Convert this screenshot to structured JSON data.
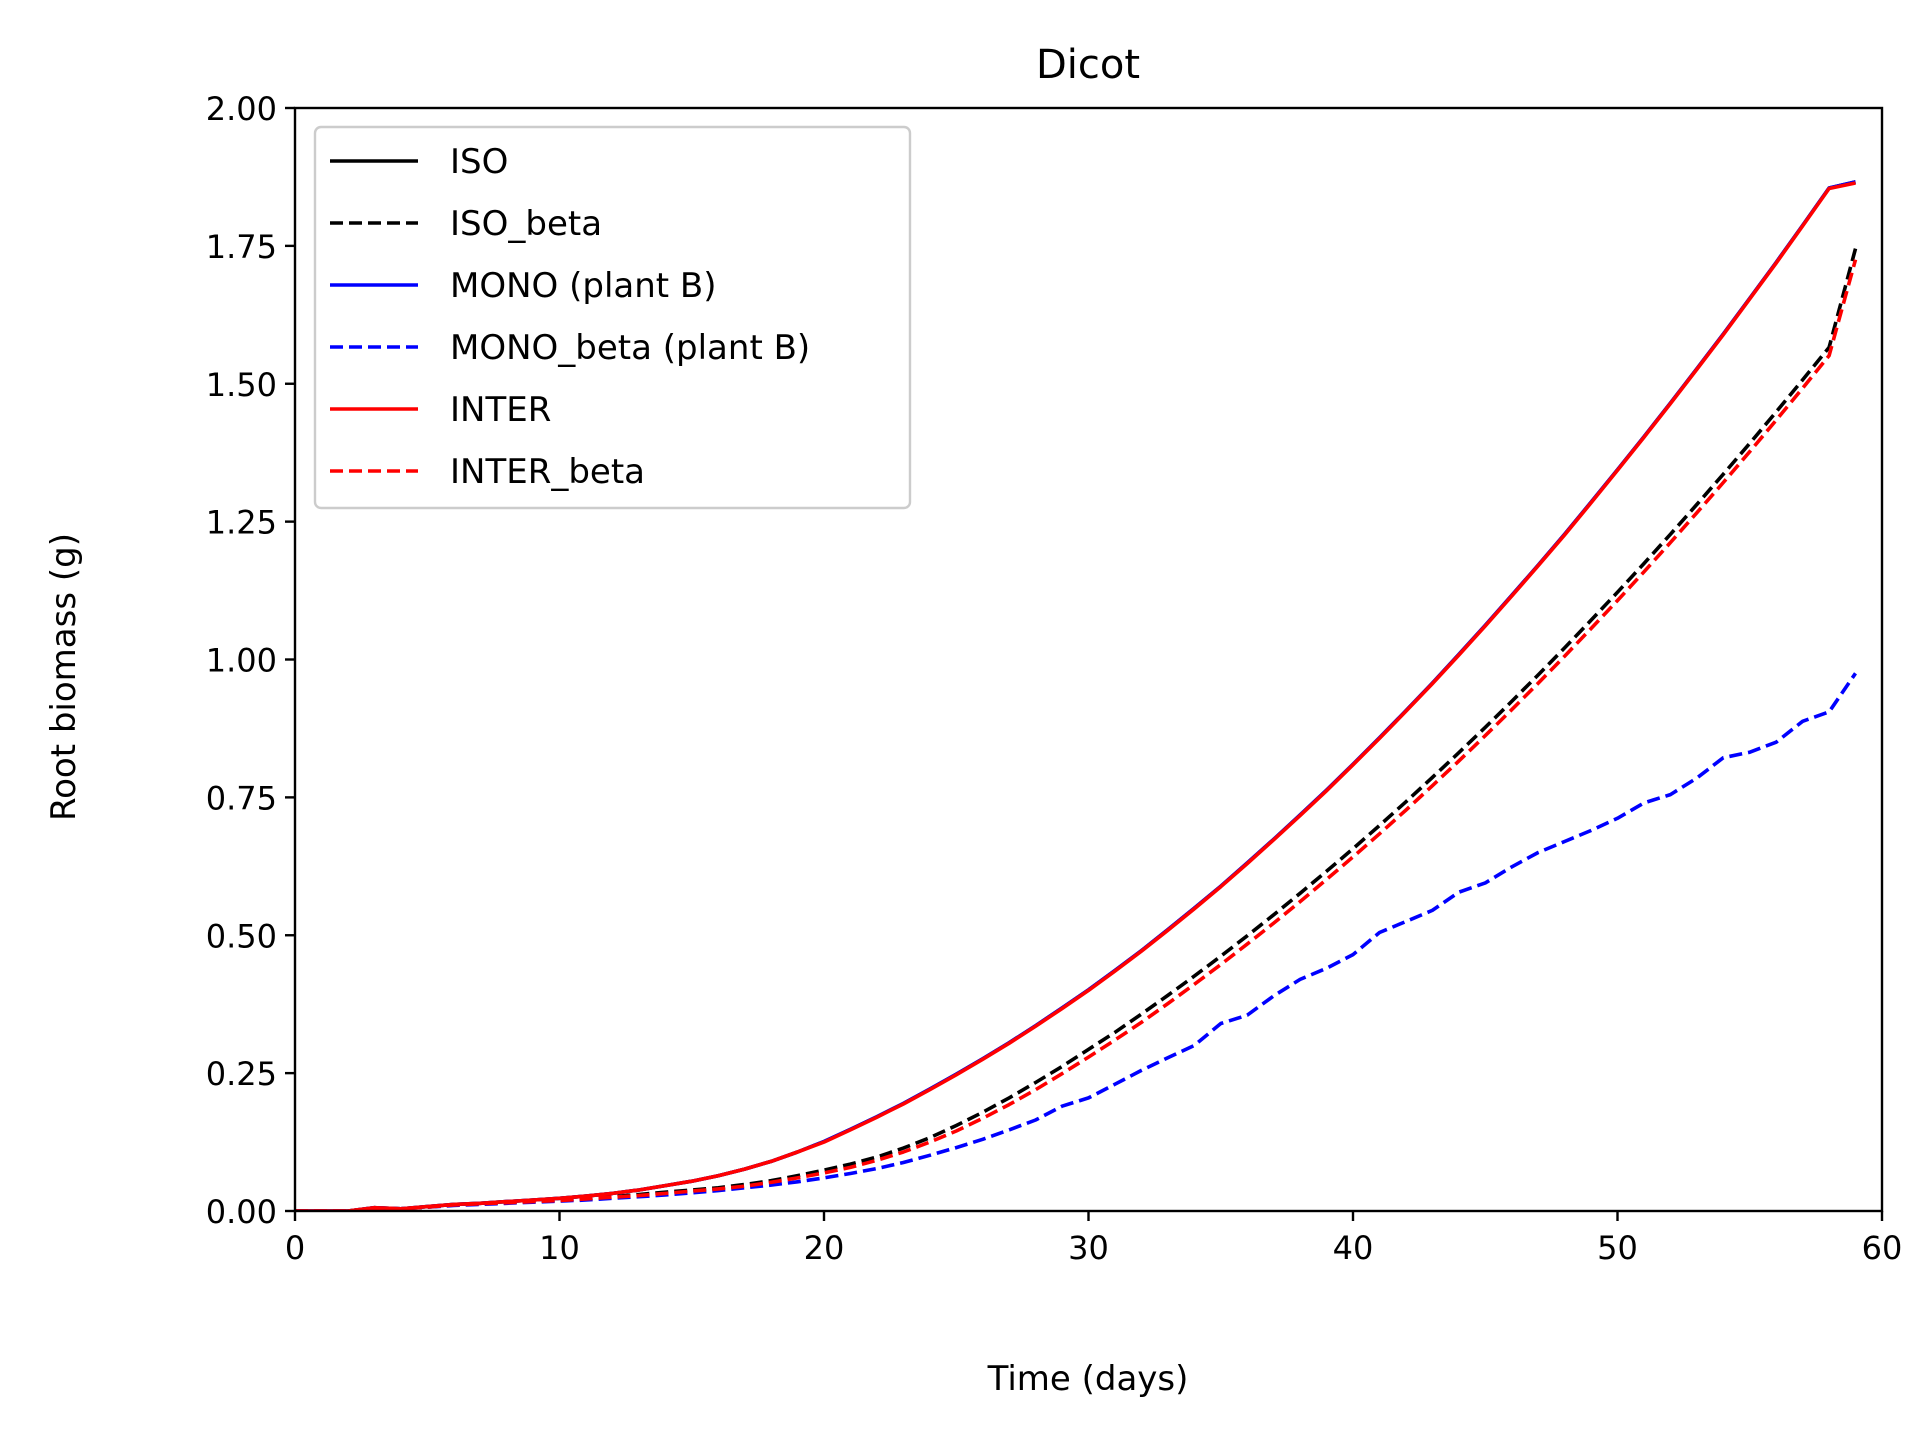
{
  "chart_data": {
    "type": "line",
    "title": "Dicot",
    "xlabel": "Time (days)",
    "ylabel": "Root biomass (g)",
    "xlim": [
      0,
      60
    ],
    "ylim": [
      0,
      2.0
    ],
    "xticks": [
      0,
      10,
      20,
      30,
      40,
      50,
      60
    ],
    "xtick_labels": [
      "0",
      "10",
      "20",
      "30",
      "40",
      "50",
      "60"
    ],
    "yticks": [
      0,
      0.25,
      0.5,
      0.75,
      1.0,
      1.25,
      1.5,
      1.75,
      2.0
    ],
    "ytick_labels": [
      "0.00",
      "0.25",
      "0.50",
      "0.75",
      "1.00",
      "1.25",
      "1.50",
      "1.75",
      "2.00"
    ],
    "grid": false,
    "legend_position": "upper-left",
    "x": [
      0,
      1,
      2,
      3,
      4,
      5,
      6,
      7,
      8,
      9,
      10,
      11,
      12,
      13,
      14,
      15,
      16,
      17,
      18,
      19,
      20,
      21,
      22,
      23,
      24,
      25,
      26,
      27,
      28,
      29,
      30,
      31,
      32,
      33,
      34,
      35,
      36,
      37,
      38,
      39,
      40,
      41,
      42,
      43,
      44,
      45,
      46,
      47,
      48,
      49,
      50,
      51,
      52,
      53,
      54,
      55,
      56,
      57,
      58,
      59
    ],
    "series": [
      {
        "name": "ISO",
        "color": "#000000",
        "dash": "solid",
        "values": [
          0,
          0,
          0,
          0.006,
          0.004,
          0.008,
          0.012,
          0.014,
          0.017,
          0.02,
          0.023,
          0.027,
          0.032,
          0.038,
          0.046,
          0.054,
          0.064,
          0.076,
          0.09,
          0.107,
          0.126,
          0.148,
          0.171,
          0.195,
          0.221,
          0.248,
          0.276,
          0.305,
          0.336,
          0.368,
          0.401,
          0.436,
          0.472,
          0.51,
          0.549,
          0.589,
          0.631,
          0.674,
          0.718,
          0.763,
          0.81,
          0.858,
          0.907,
          0.957,
          1.009,
          1.062,
          1.116,
          1.171,
          1.227,
          1.285,
          1.344,
          1.404,
          1.465,
          1.527,
          1.59,
          1.655,
          1.72,
          1.787,
          1.855,
          1.866
        ]
      },
      {
        "name": "ISO_beta",
        "color": "#000000",
        "dash": "dashed",
        "values": [
          0,
          0,
          0,
          0.005,
          0.004,
          0.007,
          0.011,
          0.013,
          0.015,
          0.018,
          0.02,
          0.023,
          0.026,
          0.03,
          0.034,
          0.038,
          0.042,
          0.048,
          0.055,
          0.064,
          0.074,
          0.085,
          0.098,
          0.114,
          0.133,
          0.155,
          0.179,
          0.205,
          0.233,
          0.262,
          0.293,
          0.324,
          0.357,
          0.391,
          0.426,
          0.462,
          0.499,
          0.537,
          0.576,
          0.616,
          0.657,
          0.699,
          0.742,
          0.786,
          0.831,
          0.877,
          0.924,
          0.972,
          1.021,
          1.071,
          1.122,
          1.174,
          1.227,
          1.281,
          1.336,
          1.392,
          1.449,
          1.507,
          1.566,
          1.745
        ]
      },
      {
        "name": "MONO (plant B)",
        "color": "#0000ff",
        "dash": "solid",
        "values": [
          0,
          0,
          0,
          0.006,
          0.004,
          0.008,
          0.012,
          0.014,
          0.017,
          0.02,
          0.023,
          0.027,
          0.032,
          0.038,
          0.046,
          0.054,
          0.064,
          0.076,
          0.09,
          0.107,
          0.126,
          0.148,
          0.171,
          0.195,
          0.221,
          0.248,
          0.276,
          0.305,
          0.336,
          0.368,
          0.401,
          0.436,
          0.472,
          0.51,
          0.549,
          0.589,
          0.631,
          0.674,
          0.718,
          0.763,
          0.81,
          0.858,
          0.907,
          0.957,
          1.009,
          1.062,
          1.116,
          1.171,
          1.227,
          1.285,
          1.344,
          1.404,
          1.465,
          1.527,
          1.59,
          1.655,
          1.72,
          1.787,
          1.855,
          1.866
        ]
      },
      {
        "name": "MONO_beta (plant B)",
        "color": "#0000ff",
        "dash": "dashed",
        "values": [
          0,
          0,
          0,
          0.005,
          0.004,
          0.007,
          0.01,
          0.012,
          0.014,
          0.016,
          0.018,
          0.02,
          0.023,
          0.026,
          0.029,
          0.033,
          0.037,
          0.042,
          0.047,
          0.053,
          0.06,
          0.068,
          0.077,
          0.088,
          0.101,
          0.115,
          0.13,
          0.147,
          0.165,
          0.19,
          0.205,
          0.23,
          0.255,
          0.278,
          0.3,
          0.34,
          0.355,
          0.39,
          0.42,
          0.44,
          0.465,
          0.505,
          0.525,
          0.545,
          0.578,
          0.595,
          0.624,
          0.65,
          0.67,
          0.69,
          0.712,
          0.74,
          0.755,
          0.785,
          0.822,
          0.832,
          0.85,
          0.888,
          0.905,
          0.975
        ]
      },
      {
        "name": "INTER",
        "color": "#ff0000",
        "dash": "solid",
        "values": [
          0,
          0,
          0,
          0.006,
          0.004,
          0.008,
          0.012,
          0.014,
          0.017,
          0.02,
          0.023,
          0.027,
          0.032,
          0.038,
          0.046,
          0.054,
          0.064,
          0.076,
          0.09,
          0.107,
          0.125,
          0.147,
          0.17,
          0.194,
          0.22,
          0.247,
          0.275,
          0.304,
          0.335,
          0.367,
          0.4,
          0.435,
          0.471,
          0.509,
          0.548,
          0.588,
          0.63,
          0.673,
          0.717,
          0.762,
          0.809,
          0.857,
          0.906,
          0.956,
          1.008,
          1.061,
          1.115,
          1.17,
          1.226,
          1.284,
          1.343,
          1.403,
          1.464,
          1.526,
          1.589,
          1.654,
          1.719,
          1.786,
          1.854,
          1.864
        ]
      },
      {
        "name": "INTER_beta",
        "color": "#ff0000",
        "dash": "dashed",
        "values": [
          0,
          0,
          0,
          0.005,
          0.004,
          0.007,
          0.011,
          0.013,
          0.015,
          0.017,
          0.019,
          0.022,
          0.025,
          0.028,
          0.032,
          0.036,
          0.04,
          0.045,
          0.052,
          0.06,
          0.069,
          0.079,
          0.092,
          0.107,
          0.125,
          0.145,
          0.168,
          0.193,
          0.22,
          0.249,
          0.279,
          0.31,
          0.342,
          0.376,
          0.411,
          0.447,
          0.484,
          0.522,
          0.561,
          0.601,
          0.642,
          0.684,
          0.727,
          0.771,
          0.816,
          0.862,
          0.909,
          0.957,
          1.006,
          1.056,
          1.107,
          1.159,
          1.212,
          1.266,
          1.321,
          1.377,
          1.434,
          1.492,
          1.551,
          1.725
        ]
      }
    ]
  }
}
